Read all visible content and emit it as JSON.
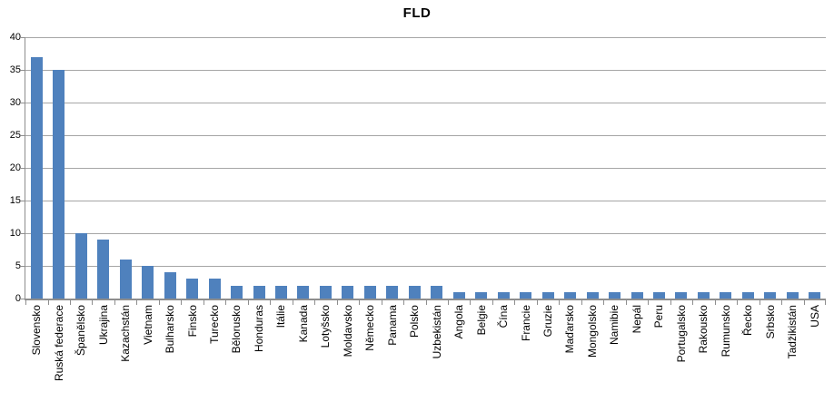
{
  "chart_data": {
    "type": "bar",
    "title": "FLD",
    "categories": [
      "Slovensko",
      "Ruská federace",
      "Španělsko",
      "Ukrajina",
      "Kazachstán",
      "Vietnam",
      "Bulharsko",
      "Finsko",
      "Turecko",
      "Bělorusko",
      "Honduras",
      "Itálie",
      "Kanada",
      "Lotyšsko",
      "Moldavsko",
      "Německo",
      "Panama",
      "Polsko",
      "Uzbekistán",
      "Angola",
      "Belgie",
      "Čína",
      "Francie",
      "Gruzie",
      "Maďarsko",
      "Mongolsko",
      "Namibie",
      "Nepál",
      "Peru",
      "Portugalsko",
      "Rakousko",
      "Rumunsko",
      "Řecko",
      "Srbsko",
      "Tadžikistán",
      "USA"
    ],
    "values": [
      37,
      35,
      10,
      9,
      6,
      5,
      4,
      3,
      3,
      2,
      2,
      2,
      2,
      2,
      2,
      2,
      2,
      2,
      2,
      1,
      1,
      1,
      1,
      1,
      1,
      1,
      1,
      1,
      1,
      1,
      1,
      1,
      1,
      1,
      1,
      1
    ],
    "xlabel": "",
    "ylabel": "",
    "ylim": [
      0,
      40
    ],
    "yticks": [
      0,
      5,
      10,
      15,
      20,
      25,
      30,
      35,
      40
    ],
    "grid": true,
    "legend": "none",
    "colors": {
      "bar": "#4F81BD",
      "gridline": "#A6A6A6",
      "axis": "#8E8E8E",
      "text": "#000000",
      "background": "#FFFFFF"
    }
  }
}
